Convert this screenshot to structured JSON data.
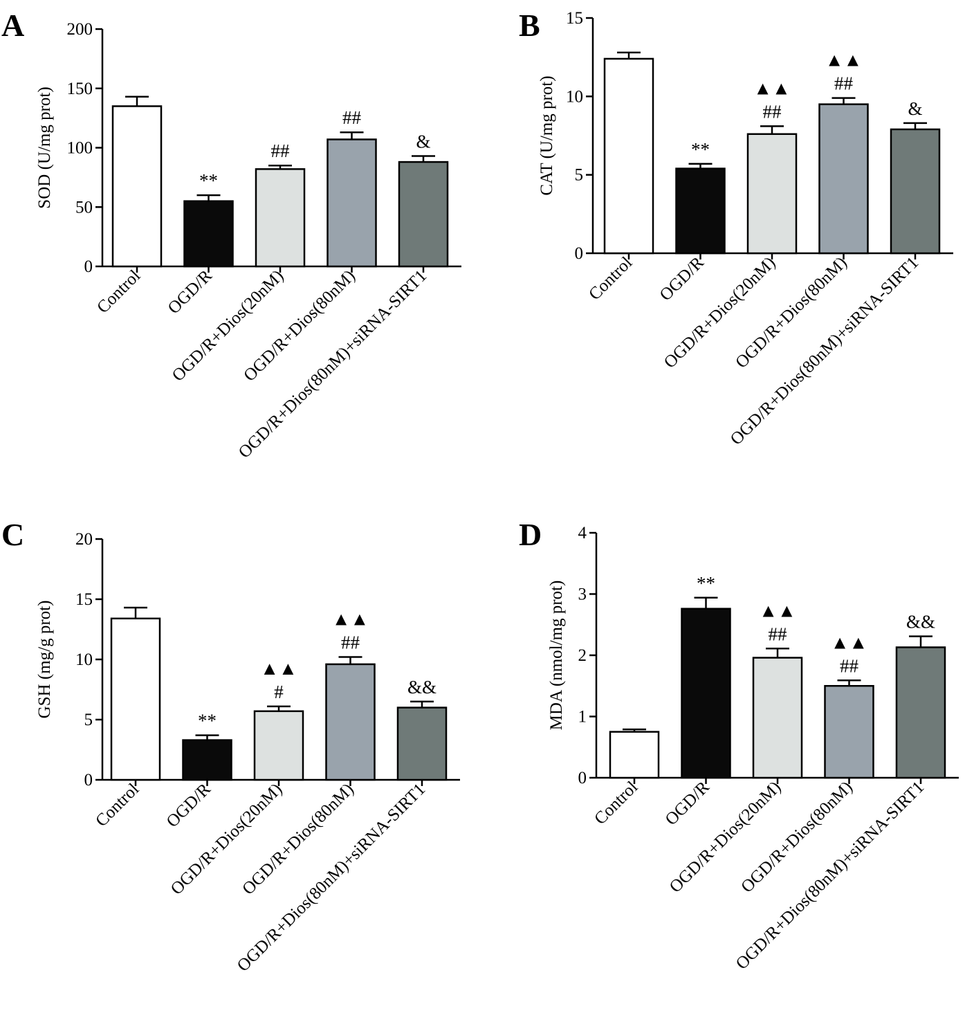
{
  "chart_data": [
    {
      "type": "bar",
      "panel": "A",
      "ylabel": "SOD (U/mg prot)",
      "ylim": [
        0,
        200
      ],
      "yticks": [
        0,
        50,
        100,
        150,
        200
      ],
      "categories": [
        "Control",
        "OGD/R",
        "OGD/R+Dios(20nM)",
        "OGD/R+Dios(80nM)",
        "OGD/R+Dios(80nM)+siRNA-SIRT1"
      ],
      "values": [
        135,
        55,
        82,
        107,
        88
      ],
      "errors": [
        8,
        5,
        3,
        6,
        5
      ],
      "significance": [
        [],
        [
          "**"
        ],
        [
          "##"
        ],
        [
          "##"
        ],
        [
          "&"
        ]
      ],
      "bar_colors": [
        "#ffffff",
        "#0a0a0a",
        "#dde1e0",
        "#99a3ac",
        "#6f7a78"
      ]
    },
    {
      "type": "bar",
      "panel": "B",
      "ylabel": "CAT (U/mg prot)",
      "ylim": [
        0,
        15
      ],
      "yticks": [
        0,
        5,
        10,
        15
      ],
      "categories": [
        "Control",
        "OGD/R",
        "OGD/R+Dios(20nM)",
        "OGD/R+Dios(80nM)",
        "OGD/R+Dios(80nM)+siRNA-SIRT1"
      ],
      "values": [
        12.4,
        5.4,
        7.6,
        9.5,
        7.9
      ],
      "errors": [
        0.4,
        0.3,
        0.5,
        0.4,
        0.4
      ],
      "significance": [
        [],
        [
          "**"
        ],
        [
          "▲▲",
          "##"
        ],
        [
          "▲▲",
          "##"
        ],
        [
          "&"
        ]
      ],
      "bar_colors": [
        "#ffffff",
        "#0a0a0a",
        "#dde1e0",
        "#99a3ac",
        "#6f7a78"
      ]
    },
    {
      "type": "bar",
      "panel": "C",
      "ylabel": "GSH (mg/g prot)",
      "ylim": [
        0,
        20
      ],
      "yticks": [
        0,
        5,
        10,
        15,
        20
      ],
      "categories": [
        "Control",
        "OGD/R",
        "OGD/R+Dios(20nM)",
        "OGD/R+Dios(80nM)",
        "OGD/R+Dios(80nM)+siRNA-SIRT1"
      ],
      "values": [
        13.4,
        3.3,
        5.7,
        9.6,
        6.0
      ],
      "errors": [
        0.9,
        0.4,
        0.4,
        0.6,
        0.5
      ],
      "significance": [
        [],
        [
          "**"
        ],
        [
          "▲▲",
          "#"
        ],
        [
          "▲▲",
          "##"
        ],
        [
          "&&"
        ]
      ],
      "bar_colors": [
        "#ffffff",
        "#0a0a0a",
        "#dde1e0",
        "#99a3ac",
        "#6f7a78"
      ]
    },
    {
      "type": "bar",
      "panel": "D",
      "ylabel": "MDA (nmol/mg prot)",
      "ylim": [
        0,
        4
      ],
      "yticks": [
        0,
        1,
        2,
        3,
        4
      ],
      "categories": [
        "Control",
        "OGD/R",
        "OGD/R+Dios(20nM)",
        "OGD/R+Dios(80nM)",
        "OGD/R+Dios(80nM)+siRNA-SIRT1"
      ],
      "values": [
        0.75,
        2.76,
        1.96,
        1.5,
        2.13
      ],
      "errors": [
        0.04,
        0.18,
        0.15,
        0.09,
        0.18
      ],
      "significance": [
        [],
        [
          "**"
        ],
        [
          "▲▲",
          "##"
        ],
        [
          "▲▲",
          "##"
        ],
        [
          "&&"
        ]
      ],
      "bar_colors": [
        "#ffffff",
        "#0a0a0a",
        "#dde1e0",
        "#99a3ac",
        "#6f7a78"
      ]
    }
  ]
}
